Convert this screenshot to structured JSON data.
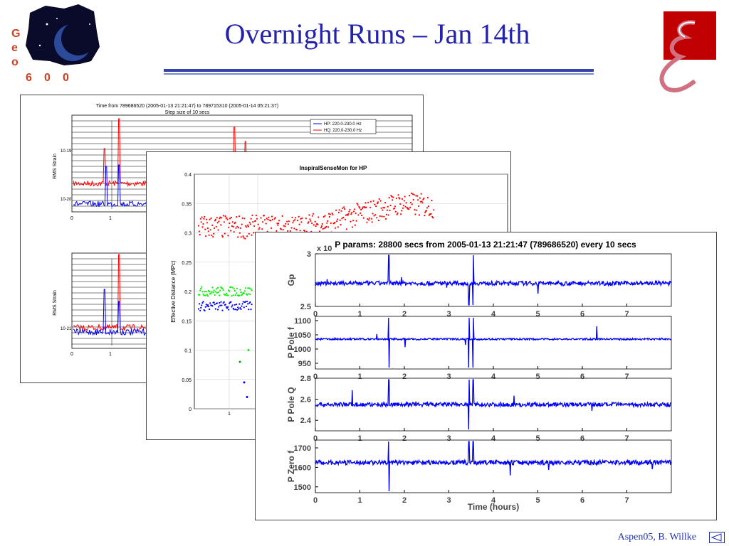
{
  "slide": {
    "title": "Overnight Runs – Jan 14th",
    "footer": "Aspen05, B. Willke",
    "logo_letters": [
      "G",
      "e",
      "o",
      "6",
      "0",
      "0"
    ]
  },
  "colors": {
    "title": "#2222aa",
    "blue_series": "#0000ff",
    "red_series": "#ff0000",
    "green_series": "#00ee00"
  },
  "chart_data": [
    {
      "type": "line",
      "title": "Time from 789686520 (2005-01-13 21:21:47) to 789715310 (2005-01-14 05:21:37)",
      "subtitle": "Step size of 10 secs",
      "ylabel": "RMS Strain",
      "y_ticks_top": [
        "10-19",
        "10-20"
      ],
      "y_ticks_bottom": [
        "10-21"
      ],
      "x_ticks": [
        "0",
        "1"
      ],
      "legend": [
        "HP: 220.0-230.0 Hz",
        "HQ: 220.0-230.0 Hz"
      ],
      "legend_position": "top-right",
      "grid": true,
      "series": [
        {
          "name": "HP: 220.0-230.0 Hz",
          "color": "blue"
        },
        {
          "name": "HQ: 220.0-230.0 Hz",
          "color": "red"
        }
      ]
    },
    {
      "type": "scatter",
      "title": "InspiralSenseMon for HP",
      "ylabel": "Effective Distance (MPc)",
      "ylim": [
        0,
        0.4
      ],
      "y_ticks": [
        "0.4",
        "0.35",
        "0.3",
        "0.25",
        "0.2",
        "0.15",
        "0.1",
        "0.05",
        "0"
      ],
      "x_ticks": [
        "1"
      ],
      "grid": true,
      "series": [
        {
          "color": "red",
          "x_hours": [
            0,
            1.5,
            2,
            3,
            3.5
          ],
          "values": [
            0.31,
            0.31,
            0.32,
            0.35,
            0.345
          ]
        },
        {
          "color": "green",
          "x_hours": [
            0,
            0.2
          ],
          "values": [
            0.2,
            0.2
          ]
        },
        {
          "color": "blue",
          "x_hours": [
            0,
            0.2
          ],
          "values": [
            0.175,
            0.175
          ]
        }
      ]
    },
    {
      "type": "line",
      "title": "P params: 28800 secs from 2005-01-13 21:21:47 (789686520) every 10 secs",
      "xlabel": "Time (hours)",
      "xlim": [
        0,
        8
      ],
      "x_ticks": [
        "0",
        "1",
        "2",
        "3",
        "4",
        "5",
        "6",
        "7"
      ],
      "exponent_label": "x 10",
      "grid": false,
      "panels": [
        {
          "ylabel": "Gp",
          "ylim": [
            2.5,
            3.0
          ],
          "y_ticks": [
            "3",
            "2.5"
          ],
          "baseline": 2.72,
          "noise": 0.02,
          "color": "blue"
        },
        {
          "ylabel": "P Pole f",
          "ylim": [
            930,
            1115
          ],
          "y_ticks": [
            "1100",
            "1050",
            "1000",
            "950"
          ],
          "baseline": 1035,
          "noise": 3,
          "color": "blue"
        },
        {
          "ylabel": "P Pole Q",
          "ylim": [
            2.3,
            2.8
          ],
          "y_ticks": [
            "2.8",
            "2.6",
            "2.4"
          ],
          "baseline": 2.55,
          "noise": 0.02,
          "color": "blue"
        },
        {
          "ylabel": "P Zero f",
          "ylim": [
            1470,
            1740
          ],
          "y_ticks": [
            "1700",
            "1600",
            "1500"
          ],
          "baseline": 1625,
          "noise": 12,
          "color": "blue"
        }
      ],
      "glitches_hours": [
        1.65,
        3.45,
        3.55
      ]
    }
  ]
}
